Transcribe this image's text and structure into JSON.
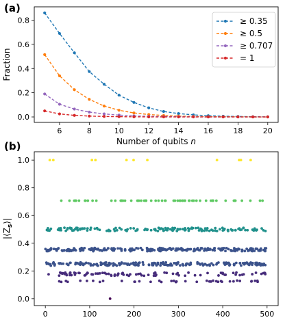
{
  "figure": {
    "panel_a_label": "(a)",
    "panel_b_label": "(b)"
  },
  "chart_data": [
    {
      "type": "line",
      "panel": "(a)",
      "title": "",
      "xlabel": "Number of qubits n",
      "ylabel": "Fraction",
      "xlim": [
        4.3,
        20.7
      ],
      "ylim": [
        -0.045,
        0.91
      ],
      "xticks": [
        6,
        8,
        10,
        12,
        14,
        16,
        18,
        20
      ],
      "yticks": [
        0.0,
        0.2,
        0.4,
        0.6,
        0.8
      ],
      "grid": false,
      "legend_position": "top-right",
      "x": [
        5,
        6,
        7,
        8,
        9,
        10,
        11,
        12,
        13,
        14,
        15,
        16,
        17,
        18,
        19,
        20
      ],
      "series": [
        {
          "name": "≥ 0.35",
          "color": "#1f77b4",
          "values": [
            0.86,
            0.69,
            0.53,
            0.375,
            0.27,
            0.18,
            0.12,
            0.075,
            0.045,
            0.028,
            0.017,
            0.01,
            0.006,
            0.004,
            0.002,
            0.001
          ]
        },
        {
          "name": "≥ 0.5",
          "color": "#ff7f0e",
          "values": [
            0.515,
            0.34,
            0.225,
            0.145,
            0.09,
            0.055,
            0.033,
            0.02,
            0.012,
            0.007,
            0.004,
            0.002,
            0.001,
            0.001,
            0.0,
            0.0
          ]
        },
        {
          "name": "≥ 0.707",
          "color": "#9467bd",
          "values": [
            0.19,
            0.105,
            0.065,
            0.04,
            0.025,
            0.015,
            0.009,
            0.005,
            0.003,
            0.002,
            0.001,
            0.0,
            0.0,
            0.0,
            0.0,
            0.0
          ]
        },
        {
          "name": "= 1",
          "color": "#d62728",
          "values": [
            0.05,
            0.025,
            0.013,
            0.007,
            0.004,
            0.002,
            0.001,
            0.0,
            0.0,
            0.0,
            0.0,
            0.0,
            0.0,
            0.0,
            0.0,
            0.0
          ]
        }
      ]
    },
    {
      "type": "scatter",
      "panel": "(b)",
      "title": "",
      "xlabel": "",
      "ylabel": "|⟨Z_S⟩|",
      "xlim": [
        -25,
        525
      ],
      "ylim": [
        -0.05,
        1.06
      ],
      "xticks": [
        0,
        100,
        200,
        300,
        400,
        500
      ],
      "yticks": [
        0.0,
        0.2,
        0.4,
        0.6,
        0.8,
        1.0
      ],
      "grid": false,
      "levels": [
        {
          "y": 1.0,
          "color": "#fde725",
          "x": [
            10,
            18,
            105,
            113,
            183,
            199,
            230,
            387,
            437,
            441,
            463
          ]
        },
        {
          "y": 0.707,
          "color": "#5ec962",
          "jitter": 0.0,
          "start": 32,
          "end": 497,
          "count": 62,
          "seed": 11
        },
        {
          "y": 0.5,
          "color": "#21918c",
          "jitter": 0.012,
          "start": 0,
          "end": 499,
          "count": 150,
          "seed": 23
        },
        {
          "y": 0.354,
          "color": "#3b528b",
          "jitter": 0.012,
          "start": 0,
          "end": 500,
          "count": 230,
          "seed": 37
        },
        {
          "y": 0.25,
          "color": "#3b528b",
          "jitter": 0.012,
          "start": 2,
          "end": 500,
          "count": 200,
          "seed": 41
        },
        {
          "y": 0.177,
          "color": "#472d7b",
          "jitter": 0.012,
          "start": 3,
          "end": 497,
          "count": 90,
          "seed": 53
        },
        {
          "y": 0.125,
          "color": "#472d7b",
          "jitter": 0.006,
          "start": 30,
          "end": 494,
          "count": 40,
          "seed": 61
        },
        {
          "y": 0.0,
          "color": "#440154",
          "x": [
            146
          ]
        }
      ]
    }
  ]
}
